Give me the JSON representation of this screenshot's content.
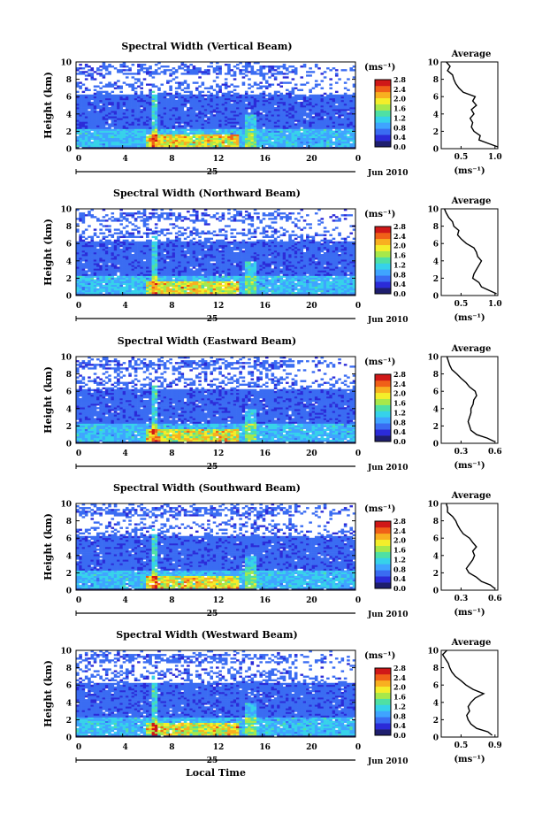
{
  "colors": {
    "scale": [
      "#1e1e6e",
      "#2b2bd8",
      "#3a6cf2",
      "#3fa4ff",
      "#36d2ea",
      "#4fe0a4",
      "#a8e84a",
      "#f4ee2a",
      "#f8b020",
      "#f06018",
      "#d01818"
    ],
    "background": "#ffffff",
    "axis": "#000000"
  },
  "shared": {
    "colorbar_unit": "(ms⁻¹)",
    "colorbar_ticks": [
      "2.8",
      "2.4",
      "2.0",
      "1.6",
      "1.2",
      "0.8",
      "0.4",
      "0.0"
    ],
    "height_label": "Height (km)",
    "height_ticks": [
      "10",
      "8",
      "6",
      "4",
      "2",
      "0"
    ],
    "time_ticks": [
      "0",
      "4",
      "8",
      "12",
      "16",
      "20",
      "0"
    ],
    "day_label": "25",
    "month_label": "Jun 2010",
    "avg_title": "Average",
    "avg_unit": "(ms⁻¹)",
    "xlabel": "Local Time"
  },
  "chart_data": [
    {
      "type": "heatmap",
      "title": "Spectral Width (Vertical Beam)",
      "ylabel": "Height (km)",
      "ylim": [
        0,
        10
      ],
      "xlim": [
        0,
        24
      ],
      "colorbar_range": [
        0.0,
        2.8
      ],
      "profile": {
        "type": "line",
        "title": "Average",
        "xlim": [
          0.1,
          1.0
        ],
        "xticks": [
          "0.5",
          "1.0"
        ],
        "heights": [
          0.2,
          0.6,
          1.0,
          1.5,
          2.0,
          2.5,
          3.0,
          3.5,
          4.0,
          4.5,
          5.0,
          5.5,
          6.0,
          6.5,
          7.0,
          7.5,
          8.0,
          8.5,
          9.0,
          9.5,
          10.0
        ],
        "values": [
          1.0,
          0.85,
          0.7,
          0.72,
          0.62,
          0.58,
          0.6,
          0.56,
          0.62,
          0.58,
          0.66,
          0.6,
          0.64,
          0.45,
          0.38,
          0.33,
          0.3,
          0.28,
          0.2,
          0.24,
          0.18
        ]
      }
    },
    {
      "type": "heatmap",
      "title": "Spectral Width (Northward Beam)",
      "ylabel": "Height (km)",
      "ylim": [
        0,
        10
      ],
      "xlim": [
        0,
        24
      ],
      "colorbar_range": [
        0.0,
        2.8
      ],
      "profile": {
        "type": "line",
        "title": "Average",
        "xlim": [
          0.1,
          1.0
        ],
        "xticks": [
          "0.5",
          "1.0"
        ],
        "heights": [
          0.2,
          0.6,
          1.0,
          1.5,
          2.0,
          2.5,
          3.0,
          3.5,
          4.0,
          4.5,
          5.0,
          5.5,
          6.0,
          6.5,
          7.0,
          7.5,
          8.0,
          8.5,
          9.0,
          9.5,
          10.0
        ],
        "values": [
          0.98,
          0.86,
          0.74,
          0.7,
          0.6,
          0.62,
          0.66,
          0.7,
          0.74,
          0.68,
          0.66,
          0.62,
          0.5,
          0.42,
          0.36,
          0.38,
          0.3,
          0.28,
          0.22,
          0.18,
          0.15
        ]
      }
    },
    {
      "type": "heatmap",
      "title": "Spectral Width (Eastward Beam)",
      "ylabel": "Height (km)",
      "ylim": [
        0,
        10
      ],
      "xlim": [
        0,
        24
      ],
      "colorbar_range": [
        0.0,
        2.8
      ],
      "profile": {
        "type": "line",
        "title": "Average",
        "xlim": [
          0.1,
          0.9
        ],
        "xticks": [
          "0.3",
          "0.6"
        ],
        "heights": [
          0.2,
          0.6,
          1.0,
          1.5,
          2.0,
          2.5,
          3.0,
          3.5,
          4.0,
          4.5,
          5.0,
          5.5,
          6.0,
          6.5,
          7.0,
          7.5,
          8.0,
          8.5,
          9.0,
          9.5,
          10.0
        ],
        "values": [
          0.85,
          0.75,
          0.6,
          0.52,
          0.5,
          0.48,
          0.5,
          0.52,
          0.52,
          0.55,
          0.56,
          0.6,
          0.58,
          0.5,
          0.45,
          0.38,
          0.32,
          0.25,
          0.22,
          0.2,
          0.18
        ]
      }
    },
    {
      "type": "heatmap",
      "title": "Spectral Width (Southward Beam)",
      "ylabel": "Height (km)",
      "ylim": [
        0,
        10
      ],
      "xlim": [
        0,
        24
      ],
      "colorbar_range": [
        0.0,
        2.8
      ],
      "profile": {
        "type": "line",
        "title": "Average",
        "xlim": [
          0.1,
          1.0
        ],
        "xticks": [
          "0.3",
          "0.6"
        ],
        "heights": [
          0.2,
          0.6,
          1.0,
          1.5,
          2.0,
          2.5,
          3.0,
          3.5,
          4.0,
          4.5,
          5.0,
          5.5,
          6.0,
          6.5,
          7.0,
          7.5,
          8.0,
          8.5,
          9.0,
          9.5,
          10.0
        ],
        "values": [
          0.95,
          0.88,
          0.74,
          0.66,
          0.54,
          0.5,
          0.55,
          0.6,
          0.63,
          0.6,
          0.66,
          0.6,
          0.55,
          0.45,
          0.4,
          0.36,
          0.33,
          0.28,
          0.2,
          0.2,
          0.18
        ]
      }
    },
    {
      "type": "heatmap",
      "title": "Spectral Width (Westward Beam)",
      "ylabel": "Height (km)",
      "ylim": [
        0,
        10
      ],
      "xlim": [
        0,
        24
      ],
      "colorbar_range": [
        0.0,
        2.8
      ],
      "profile": {
        "type": "line",
        "title": "Average",
        "xlim": [
          0.2,
          1.0
        ],
        "xticks": [
          "0.5",
          "0.9"
        ],
        "heights": [
          0.2,
          0.6,
          1.0,
          1.5,
          2.0,
          2.5,
          3.0,
          3.5,
          4.0,
          4.5,
          5.0,
          5.5,
          6.0,
          6.5,
          7.0,
          7.5,
          8.0,
          8.5,
          9.0,
          9.5,
          10.0
        ],
        "values": [
          0.92,
          0.86,
          0.7,
          0.62,
          0.58,
          0.56,
          0.6,
          0.58,
          0.62,
          0.68,
          0.8,
          0.65,
          0.55,
          0.48,
          0.4,
          0.35,
          0.32,
          0.3,
          0.26,
          0.22,
          0.28
        ]
      }
    }
  ]
}
